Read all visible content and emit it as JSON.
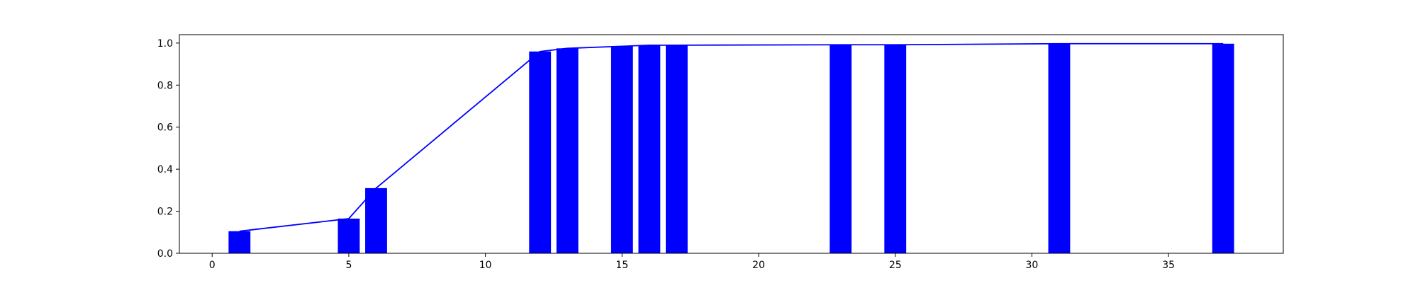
{
  "chart_data": {
    "type": "bar",
    "title": "",
    "xlabel": "",
    "ylabel": "",
    "xlim": [
      -1.2,
      39.2
    ],
    "ylim": [
      0,
      1.04
    ],
    "grid": false,
    "legend": "none",
    "x_ticks": [
      0,
      5,
      10,
      15,
      20,
      25,
      30,
      35
    ],
    "y_ticks": [
      0.0,
      0.2,
      0.4,
      0.6,
      0.8,
      1.0
    ],
    "y_tick_labels": [
      "0.0",
      "0.2",
      "0.4",
      "0.6",
      "0.8",
      "1.0"
    ],
    "bar_color": "#0000ff",
    "line_color": "#0000ff",
    "bar_width": 0.8,
    "bars": {
      "x": [
        1,
        5,
        6,
        12,
        13,
        15,
        16,
        17,
        23,
        25,
        31,
        37
      ],
      "values": [
        0.105,
        0.165,
        0.31,
        0.96,
        0.975,
        0.985,
        0.99,
        0.99,
        0.992,
        0.992,
        0.997,
        0.997
      ]
    },
    "line": {
      "x": [
        1,
        5,
        6,
        12,
        13,
        15,
        16,
        17,
        23,
        25,
        31,
        37
      ],
      "values": [
        0.105,
        0.165,
        0.31,
        0.96,
        0.975,
        0.985,
        0.99,
        0.99,
        0.992,
        0.992,
        0.997,
        0.997
      ]
    }
  }
}
